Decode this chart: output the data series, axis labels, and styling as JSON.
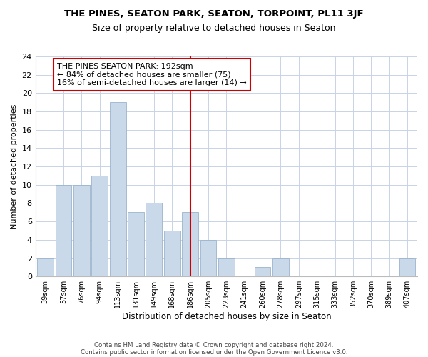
{
  "title": "THE PINES, SEATON PARK, SEATON, TORPOINT, PL11 3JF",
  "subtitle": "Size of property relative to detached houses in Seaton",
  "xlabel": "Distribution of detached houses by size in Seaton",
  "ylabel": "Number of detached properties",
  "bar_labels": [
    "39sqm",
    "57sqm",
    "76sqm",
    "94sqm",
    "113sqm",
    "131sqm",
    "149sqm",
    "168sqm",
    "186sqm",
    "205sqm",
    "223sqm",
    "241sqm",
    "260sqm",
    "278sqm",
    "297sqm",
    "315sqm",
    "333sqm",
    "352sqm",
    "370sqm",
    "389sqm",
    "407sqm"
  ],
  "bar_values": [
    2,
    10,
    10,
    11,
    19,
    7,
    8,
    5,
    7,
    4,
    2,
    0,
    1,
    2,
    0,
    0,
    0,
    0,
    0,
    0,
    2
  ],
  "bar_color": "#c9d9ea",
  "bar_edge_color": "#9ab4cc",
  "highlight_bar_index": 8,
  "highlight_line_color": "#cc0000",
  "ylim": [
    0,
    24
  ],
  "yticks": [
    0,
    2,
    4,
    6,
    8,
    10,
    12,
    14,
    16,
    18,
    20,
    22,
    24
  ],
  "annotation_title": "THE PINES SEATON PARK: 192sqm",
  "annotation_line1": "← 84% of detached houses are smaller (75)",
  "annotation_line2": "16% of semi-detached houses are larger (14) →",
  "annotation_box_color": "#ffffff",
  "annotation_box_edge": "#cc0000",
  "footer_line1": "Contains HM Land Registry data © Crown copyright and database right 2024.",
  "footer_line2": "Contains public sector information licensed under the Open Government Licence v3.0.",
  "background_color": "#ffffff",
  "grid_color": "#c8d4e4",
  "title_fontsize": 9.5,
  "subtitle_fontsize": 9
}
